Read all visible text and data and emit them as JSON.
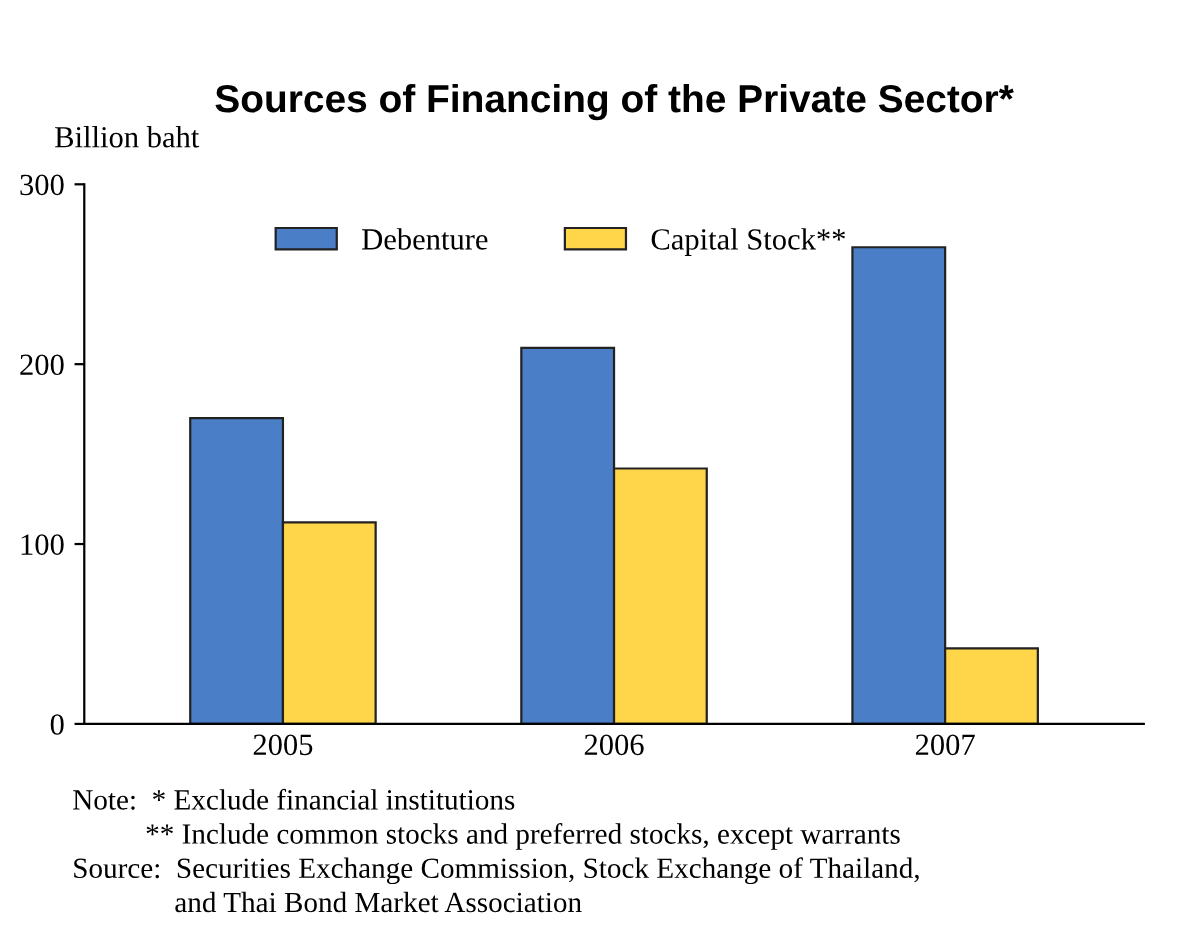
{
  "chart_data": {
    "type": "bar",
    "title": "Sources of Financing of the Private Sector*",
    "ylabel": "Billion baht",
    "categories": [
      "2005",
      "2006",
      "2007"
    ],
    "series": [
      {
        "name": "Debenture",
        "color": "#4a7fc8",
        "values": [
          170,
          209,
          265
        ]
      },
      {
        "name": "Capital Stock**",
        "color": "#ffd54a",
        "values": [
          112,
          142,
          42
        ]
      }
    ],
    "ylim": [
      0,
      300
    ],
    "yticks": [
      0,
      100,
      200,
      300
    ],
    "grid": false,
    "legend": "top",
    "annotations": [
      "Note:  * Exclude financial institutions",
      "          ** Include common stocks and preferred stocks, except warrants",
      "Source:  Securities Exchange Commission, Stock Exchange of Thailand,",
      "              and Thai Bond Market Association"
    ]
  }
}
